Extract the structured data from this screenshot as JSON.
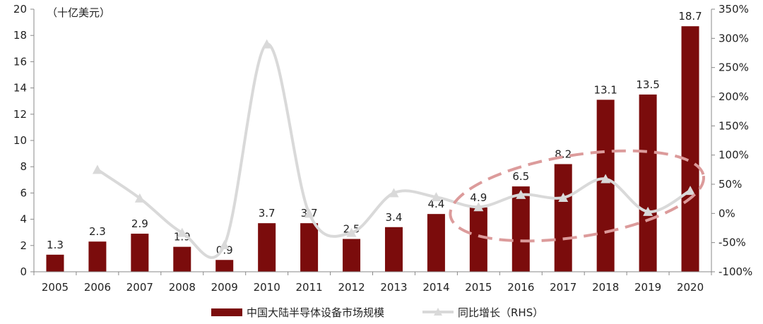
{
  "chart_data": {
    "type": "bar",
    "unit_label": "（十亿美元）",
    "categories": [
      "2005",
      "2006",
      "2007",
      "2008",
      "2009",
      "2010",
      "2011",
      "2012",
      "2013",
      "2014",
      "2015",
      "2016",
      "2017",
      "2018",
      "2019",
      "2020"
    ],
    "series": [
      {
        "name": "中国大陆半导体设备市场规模",
        "type": "bar",
        "axis": "left",
        "values": [
          1.3,
          2.3,
          2.9,
          1.9,
          0.9,
          3.7,
          3.7,
          2.5,
          3.4,
          4.4,
          4.9,
          6.5,
          8.2,
          13.1,
          13.5,
          18.7
        ],
        "labels": [
          "1.3",
          "2.3",
          "2.9",
          "1.9",
          "0.9",
          "3.7",
          "3.7",
          "2.5",
          "3.4",
          "4.4",
          "4.9",
          "6.5",
          "8.2",
          "13.1",
          "13.5",
          "18.7"
        ]
      },
      {
        "name": "同比增长（RHS）",
        "type": "line",
        "axis": "right",
        "values": [
          null,
          75,
          26,
          -33,
          -54,
          290,
          0,
          -33,
          35,
          28,
          11,
          32,
          27,
          59,
          3,
          39
        ]
      }
    ],
    "left_axis": {
      "min": 0,
      "max": 20,
      "ticks": [
        "0",
        "2",
        "4",
        "6",
        "8",
        "10",
        "12",
        "14",
        "16",
        "18",
        "20"
      ]
    },
    "right_axis": {
      "min": -100,
      "max": 350,
      "ticks": [
        "-100%",
        "-50%",
        "0%",
        "50%",
        "100%",
        "150%",
        "200%",
        "250%",
        "300%",
        "350%"
      ]
    },
    "colors": {
      "bar": "#7b0c0c",
      "line": "#d9d9d9",
      "ellipse": "#dc9b9b",
      "axis": "#888888"
    },
    "highlight": {
      "shape": "dashed-ellipse",
      "covers": [
        "2015",
        "2016",
        "2017",
        "2018",
        "2019",
        "2020"
      ]
    },
    "grid": false,
    "legend": "bottom-center"
  }
}
